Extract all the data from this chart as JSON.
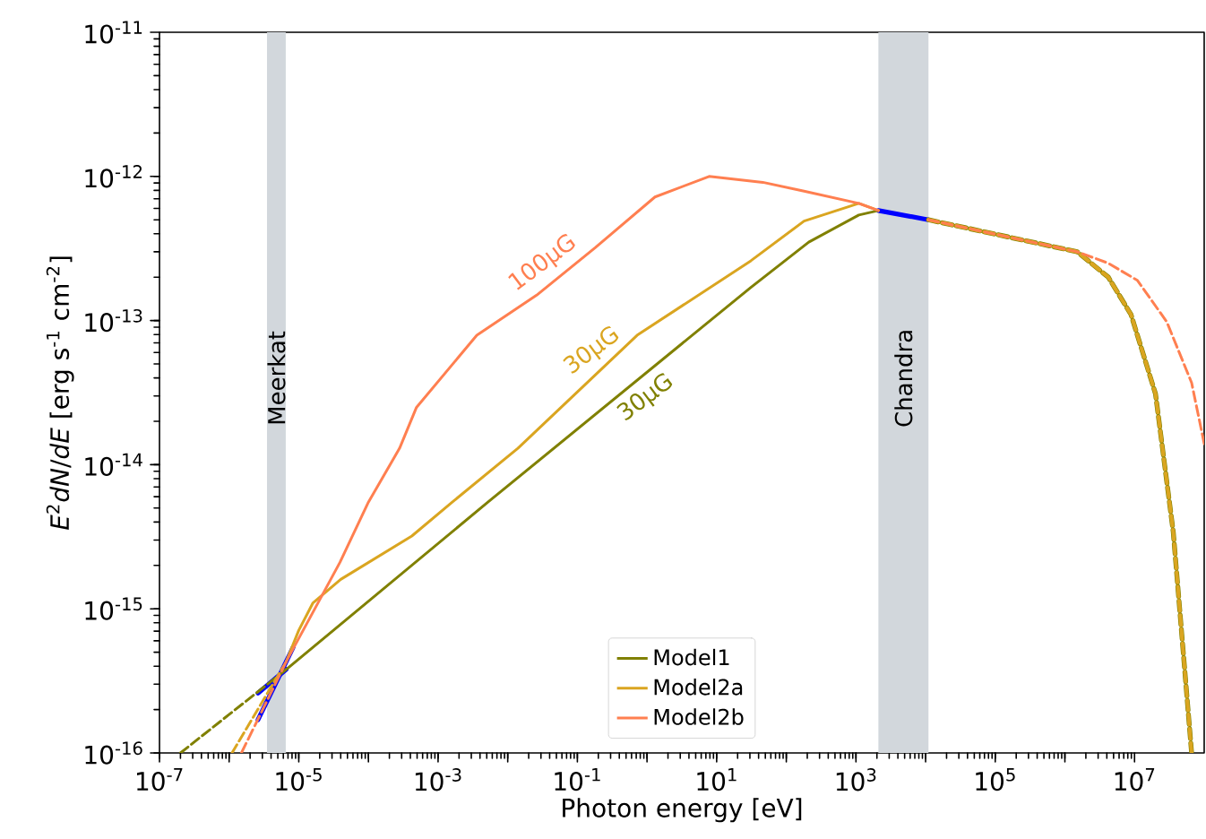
{
  "chart_data": {
    "type": "line",
    "xlabel": "Photon energy [eV]",
    "ylabel": "*E*$^{2}$*dN*/*dE* [erg s$^{-1}$ cm$^{-2}$]",
    "log": "xy",
    "xlim": [
      1e-07,
      100000000.0
    ],
    "ylim": [
      1e-16,
      1e-11
    ],
    "xticks": [
      {
        "value": 1e-07,
        "label": "10$^{-7}$"
      },
      {
        "value": 1e-06,
        "label": null
      },
      {
        "value": 1e-05,
        "label": "10$^{-5}$"
      },
      {
        "value": 0.0001,
        "label": null
      },
      {
        "value": 0.001,
        "label": "10$^{-3}$"
      },
      {
        "value": 0.01,
        "label": null
      },
      {
        "value": 0.1,
        "label": "10$^{-1}$"
      },
      {
        "value": 1,
        "label": null
      },
      {
        "value": 10,
        "label": "10$^{1}$"
      },
      {
        "value": 100,
        "label": null
      },
      {
        "value": 1000,
        "label": "10$^{3}$"
      },
      {
        "value": 10000.0,
        "label": null
      },
      {
        "value": 100000.0,
        "label": "10$^{5}$"
      },
      {
        "value": 1000000.0,
        "label": null
      },
      {
        "value": 10000000.0,
        "label": "10$^{7}$"
      }
    ],
    "yticks": [
      {
        "value": 1e-16,
        "label": "10$^{-16}$"
      },
      {
        "value": 1e-15,
        "label": "10$^{-15}$"
      },
      {
        "value": 1e-14,
        "label": "10$^{-14}$"
      },
      {
        "value": 1e-13,
        "label": "10$^{-13}$"
      },
      {
        "value": 1e-12,
        "label": "10$^{-12}$"
      },
      {
        "value": 1e-11,
        "label": "10$^{-11}$"
      }
    ],
    "legend": "bottom",
    "grid": false,
    "marker": "none",
    "series": [
      {
        "color": "#0000ff",
        "line_style": "solid",
        "x": [
          2.6e-06,
          6.6e-06
        ],
        "values": [
          2.6e-16,
          3.8e-16
        ]
      },
      {
        "color": "#0000ff",
        "line_style": "solid",
        "x": [
          2.6e-06,
          8.3e-06
        ],
        "values": [
          1.7e-16,
          5.4e-16
        ]
      },
      {
        "color": "#0000ff",
        "line_style": "solid",
        "x": [
          2100,
          11000
        ],
        "values": [
          5.8e-13,
          5e-13
        ]
      },
      {
        "color": "#808000",
        "line_style": "dashed",
        "x": [
          2e-07,
          6.6e-06
        ],
        "values": [
          1e-16,
          3.8e-16
        ]
      },
      {
        "name": "Model1",
        "color": "#808000",
        "line_style": "solid",
        "x": [
          6.6e-06,
          0.0052,
          31,
          210,
          1100,
          2100
        ],
        "values": [
          3.8e-16,
          5.5e-15,
          1.7e-13,
          3.5e-13,
          5.4e-13,
          5.8e-13
        ]
      },
      {
        "color": "#808000",
        "line_style": "dashed",
        "x": [
          11000,
          1500000.0,
          4200000.0,
          8900000.0,
          20000000.0,
          36000000.0,
          66000000.0
        ],
        "values": [
          5e-13,
          3e-13,
          2e-13,
          1.1e-13,
          3.1e-14,
          3.4e-15,
          1e-16
        ]
      },
      {
        "color": "#daa520",
        "line_style": "dashed",
        "x": [
          1.1e-06,
          6.6e-06
        ],
        "values": [
          1e-16,
          4.3e-16
        ]
      },
      {
        "name": "Model2a",
        "color": "#daa520",
        "line_style": "solid",
        "x": [
          6.6e-06,
          1e-05,
          1.6e-05,
          4e-05,
          0.00042,
          0.0016,
          0.014,
          0.72,
          31,
          180,
          1100,
          2100
        ],
        "values": [
          4.3e-16,
          7.1e-16,
          1.1e-15,
          1.6e-15,
          3.2e-15,
          5.5e-15,
          1.3e-14,
          7.9e-14,
          2.6e-13,
          4.9e-13,
          6.5e-13,
          5.8e-13
        ]
      },
      {
        "color": "#daa520",
        "line_style": "dashed",
        "x": [
          11000,
          1500000.0,
          4200000.0,
          8900000.0,
          20000000.0,
          36000000.0,
          66000000.0
        ],
        "values": [
          5e-13,
          3e-13,
          2e-13,
          1.1e-13,
          3.1e-14,
          3.4e-15,
          1e-16
        ]
      },
      {
        "color": "#ff7f50",
        "line_style": "dashed",
        "x": [
          1.5e-06,
          6.6e-06
        ],
        "values": [
          1e-16,
          4.3e-16
        ]
      },
      {
        "name": "Model2b",
        "color": "#ff7f50",
        "line_style": "solid",
        "x": [
          6.6e-06,
          3.9e-05,
          0.0001,
          0.00028,
          0.00049,
          0.0036,
          0.026,
          0.18,
          1.3,
          7.8,
          46,
          180,
          1100,
          2100
        ],
        "values": [
          4.3e-16,
          2.1e-15,
          5.5e-15,
          1.3e-14,
          2.5e-14,
          7.9e-14,
          1.5e-13,
          3.2e-13,
          7.2e-13,
          1e-12,
          9.1e-13,
          7.9e-13,
          6.5e-13,
          5.8e-13
        ]
      },
      {
        "color": "#ff7f50",
        "line_style": "dashed",
        "x": [
          11000,
          1500000.0,
          4200000.0,
          11000000.0,
          29000000.0,
          66000000.0,
          100000000.0
        ],
        "values": [
          5e-13,
          3e-13,
          2.5e-13,
          1.9e-13,
          9.8e-14,
          3.7e-14,
          1.4e-14
        ]
      }
    ],
    "bands": [
      {
        "axis": "x",
        "from": 3.5e-06,
        "to": 6.5e-06,
        "label": "Meerkat",
        "color": "#d2d7dc"
      },
      {
        "axis": "x",
        "from": 2100,
        "to": 11000,
        "label": "Chandra",
        "color": "#d2d7dc"
      }
    ],
    "annotations": [
      {
        "text": "100μG",
        "x": 0.047,
        "y": 1.95e-13
      },
      {
        "text": "30μG",
        "x": 0.24,
        "y": 4.8e-14
      },
      {
        "text": "30μG",
        "x": 0.66,
        "y": 3.7e-14
      }
    ]
  }
}
